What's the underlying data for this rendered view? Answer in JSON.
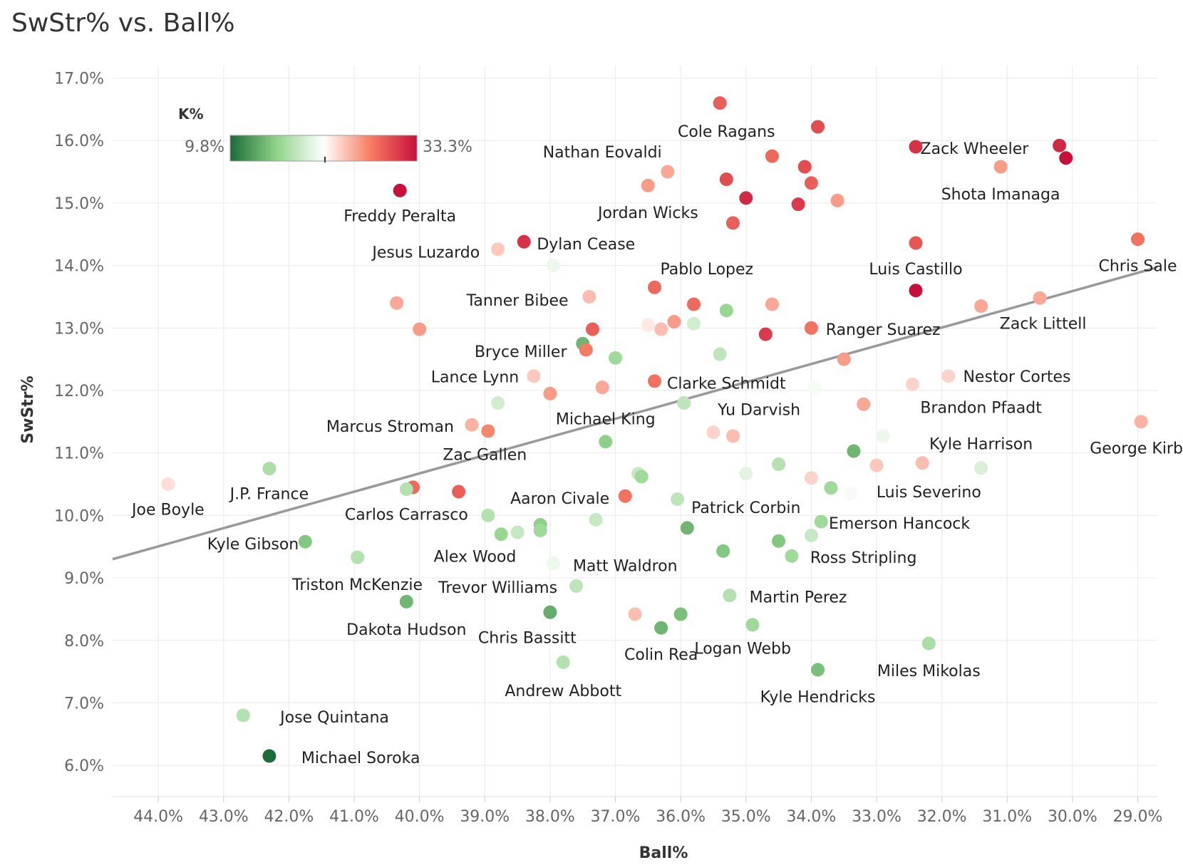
{
  "chart_data": {
    "type": "scatter",
    "title": "SwStr% vs. Ball%",
    "xlabel": "Ball%",
    "ylabel": "SwStr%",
    "x_reversed": true,
    "xlim": [
      28.7,
      44.7
    ],
    "ylim": [
      5.5,
      17.2
    ],
    "xticks": [
      44,
      43,
      42,
      41,
      40,
      39,
      38,
      37,
      36,
      35,
      34,
      33,
      32,
      31,
      30,
      29
    ],
    "yticks": [
      6,
      7,
      8,
      9,
      10,
      11,
      12,
      13,
      14,
      15,
      16,
      17
    ],
    "grid": true,
    "trendline": [
      [
        44.7,
        9.3
      ],
      [
        28.1,
        13.97
      ]
    ],
    "color_legend": {
      "title": "K%",
      "min_label": "9.8%",
      "max_label": "33.3%",
      "colors": [
        "#1e6b3a",
        "#90d48a",
        "#ffffff",
        "#f77d62",
        "#c8103a"
      ]
    },
    "points": [
      {
        "x": 35.4,
        "y": 16.6,
        "k": 29.0
      },
      {
        "x": 33.9,
        "y": 16.22,
        "k": 30.0
      },
      {
        "x": 32.4,
        "y": 15.9,
        "k": 31.5
      },
      {
        "x": 30.2,
        "y": 15.92,
        "k": 32.0
      },
      {
        "x": 30.1,
        "y": 15.72,
        "k": 33.3
      },
      {
        "x": 34.6,
        "y": 15.75,
        "k": 28.5
      },
      {
        "x": 34.1,
        "y": 15.58,
        "k": 30.0
      },
      {
        "x": 31.1,
        "y": 15.58,
        "k": 26.0
      },
      {
        "x": 36.2,
        "y": 15.5,
        "k": 25.5
      },
      {
        "x": 36.5,
        "y": 15.28,
        "k": 26.0
      },
      {
        "x": 35.3,
        "y": 15.38,
        "k": 30.0
      },
      {
        "x": 34.0,
        "y": 15.32,
        "k": 29.0
      },
      {
        "x": 35.0,
        "y": 15.08,
        "k": 32.0
      },
      {
        "x": 34.2,
        "y": 14.98,
        "k": 31.0
      },
      {
        "x": 33.6,
        "y": 15.04,
        "k": 26.0
      },
      {
        "x": 40.3,
        "y": 15.2,
        "k": 33.3
      },
      {
        "x": 35.2,
        "y": 14.68,
        "k": 29.0
      },
      {
        "x": 38.4,
        "y": 14.38,
        "k": 31.5
      },
      {
        "x": 38.8,
        "y": 14.26,
        "k": 24.0
      },
      {
        "x": 32.4,
        "y": 14.36,
        "k": 29.5
      },
      {
        "x": 29.0,
        "y": 14.42,
        "k": 28.0
      },
      {
        "x": 37.95,
        "y": 14.0,
        "k": 20.5
      },
      {
        "x": 36.4,
        "y": 13.65,
        "k": 28.5
      },
      {
        "x": 37.4,
        "y": 13.5,
        "k": 24.5
      },
      {
        "x": 32.4,
        "y": 13.6,
        "k": 33.3
      },
      {
        "x": 30.5,
        "y": 13.48,
        "k": 25.5
      },
      {
        "x": 40.35,
        "y": 13.4,
        "k": 25.5
      },
      {
        "x": 35.8,
        "y": 13.38,
        "k": 28.5
      },
      {
        "x": 34.6,
        "y": 13.38,
        "k": 25.5
      },
      {
        "x": 31.4,
        "y": 13.35,
        "k": 25.5
      },
      {
        "x": 35.3,
        "y": 13.28,
        "k": 16.0
      },
      {
        "x": 36.1,
        "y": 13.1,
        "k": 26.0
      },
      {
        "x": 35.8,
        "y": 13.07,
        "k": 19.0
      },
      {
        "x": 36.5,
        "y": 13.05,
        "k": 22.5
      },
      {
        "x": 36.3,
        "y": 12.98,
        "k": 24.5
      },
      {
        "x": 40.0,
        "y": 12.98,
        "k": 26.0
      },
      {
        "x": 37.35,
        "y": 12.98,
        "k": 29.0
      },
      {
        "x": 34.7,
        "y": 12.9,
        "k": 31.0
      },
      {
        "x": 34.0,
        "y": 13.0,
        "k": 28.0
      },
      {
        "x": 37.5,
        "y": 12.75,
        "k": 14.0
      },
      {
        "x": 37.45,
        "y": 12.65,
        "k": 27.5
      },
      {
        "x": 37.0,
        "y": 12.52,
        "k": 16.5
      },
      {
        "x": 35.4,
        "y": 12.58,
        "k": 18.0
      },
      {
        "x": 33.5,
        "y": 12.5,
        "k": 26.0
      },
      {
        "x": 38.25,
        "y": 12.23,
        "k": 24.0
      },
      {
        "x": 31.9,
        "y": 12.23,
        "k": 23.5
      },
      {
        "x": 36.4,
        "y": 12.15,
        "k": 28.0
      },
      {
        "x": 32.45,
        "y": 12.1,
        "k": 23.5
      },
      {
        "x": 37.2,
        "y": 12.05,
        "k": 25.5
      },
      {
        "x": 33.95,
        "y": 12.05,
        "k": 21.0
      },
      {
        "x": 38.0,
        "y": 11.95,
        "k": 26.0
      },
      {
        "x": 38.8,
        "y": 11.8,
        "k": 19.0
      },
      {
        "x": 35.95,
        "y": 11.8,
        "k": 18.0
      },
      {
        "x": 33.2,
        "y": 11.78,
        "k": 25.5
      },
      {
        "x": 39.2,
        "y": 11.45,
        "k": 25.0
      },
      {
        "x": 38.95,
        "y": 11.35,
        "k": 27.0
      },
      {
        "x": 35.5,
        "y": 11.33,
        "k": 23.5
      },
      {
        "x": 35.2,
        "y": 11.27,
        "k": 24.5
      },
      {
        "x": 28.95,
        "y": 11.5,
        "k": 25.0
      },
      {
        "x": 37.15,
        "y": 11.18,
        "k": 15.5
      },
      {
        "x": 32.9,
        "y": 11.27,
        "k": 20.5
      },
      {
        "x": 33.35,
        "y": 11.03,
        "k": 14.0
      },
      {
        "x": 42.3,
        "y": 10.75,
        "k": 17.0
      },
      {
        "x": 34.5,
        "y": 10.82,
        "k": 17.5
      },
      {
        "x": 33.0,
        "y": 10.8,
        "k": 24.0
      },
      {
        "x": 32.3,
        "y": 10.84,
        "k": 24.5
      },
      {
        "x": 31.4,
        "y": 10.76,
        "k": 19.5
      },
      {
        "x": 35.0,
        "y": 10.67,
        "k": 20.0
      },
      {
        "x": 36.65,
        "y": 10.67,
        "k": 18.5
      },
      {
        "x": 36.6,
        "y": 10.62,
        "k": 16.5
      },
      {
        "x": 34.0,
        "y": 10.6,
        "k": 23.5
      },
      {
        "x": 43.85,
        "y": 10.5,
        "k": 23.0
      },
      {
        "x": 40.1,
        "y": 10.45,
        "k": 28.5
      },
      {
        "x": 40.2,
        "y": 10.42,
        "k": 17.5
      },
      {
        "x": 39.4,
        "y": 10.38,
        "k": 29.0
      },
      {
        "x": 33.7,
        "y": 10.44,
        "k": 16.5
      },
      {
        "x": 33.4,
        "y": 10.35,
        "k": 21.0
      },
      {
        "x": 36.85,
        "y": 10.31,
        "k": 28.0
      },
      {
        "x": 36.05,
        "y": 10.26,
        "k": 18.0
      },
      {
        "x": 38.95,
        "y": 10.0,
        "k": 17.5
      },
      {
        "x": 37.3,
        "y": 9.93,
        "k": 18.5
      },
      {
        "x": 33.85,
        "y": 9.9,
        "k": 16.5
      },
      {
        "x": 38.15,
        "y": 9.85,
        "k": 15.5
      },
      {
        "x": 35.9,
        "y": 9.8,
        "k": 14.0
      },
      {
        "x": 38.15,
        "y": 9.76,
        "k": 16.5
      },
      {
        "x": 38.5,
        "y": 9.73,
        "k": 18.5
      },
      {
        "x": 38.75,
        "y": 9.7,
        "k": 16.0
      },
      {
        "x": 34.0,
        "y": 9.68,
        "k": 18.5
      },
      {
        "x": 41.75,
        "y": 9.58,
        "k": 15.0
      },
      {
        "x": 34.5,
        "y": 9.59,
        "k": 15.0
      },
      {
        "x": 35.35,
        "y": 9.43,
        "k": 15.0
      },
      {
        "x": 34.3,
        "y": 9.35,
        "k": 16.5
      },
      {
        "x": 40.95,
        "y": 9.33,
        "k": 17.5
      },
      {
        "x": 37.95,
        "y": 9.23,
        "k": 20.5
      },
      {
        "x": 37.6,
        "y": 8.87,
        "k": 18.0
      },
      {
        "x": 35.25,
        "y": 8.72,
        "k": 17.5
      },
      {
        "x": 40.2,
        "y": 8.62,
        "k": 14.0
      },
      {
        "x": 38.0,
        "y": 8.45,
        "k": 13.5
      },
      {
        "x": 36.0,
        "y": 8.42,
        "k": 14.5
      },
      {
        "x": 36.7,
        "y": 8.42,
        "k": 24.5
      },
      {
        "x": 34.9,
        "y": 8.25,
        "k": 16.5
      },
      {
        "x": 36.3,
        "y": 8.2,
        "k": 14.0
      },
      {
        "x": 32.2,
        "y": 7.95,
        "k": 17.0
      },
      {
        "x": 37.8,
        "y": 7.65,
        "k": 17.5
      },
      {
        "x": 33.9,
        "y": 7.53,
        "k": 14.5
      },
      {
        "x": 42.7,
        "y": 6.8,
        "k": 17.5
      },
      {
        "x": 42.3,
        "y": 6.15,
        "k": 9.8
      }
    ],
    "labels": [
      {
        "text": "Cole Ragans",
        "x": 35.3,
        "y": 16.15
      },
      {
        "text": "Zack Wheeler",
        "x": 31.5,
        "y": 15.88
      },
      {
        "text": "Nathan Eovaldi",
        "x": 37.2,
        "y": 15.82
      },
      {
        "text": "Shota Imanaga",
        "x": 31.1,
        "y": 15.15
      },
      {
        "text": "Jordan Wicks",
        "x": 36.5,
        "y": 14.85
      },
      {
        "text": "Freddy Peralta",
        "x": 40.3,
        "y": 14.8
      },
      {
        "text": "Dylan Cease",
        "x": 37.45,
        "y": 14.35
      },
      {
        "text": "Jesus Luzardo",
        "x": 39.9,
        "y": 14.22
      },
      {
        "text": "Chris Sale",
        "x": 29.0,
        "y": 14.0
      },
      {
        "text": "Luis Castillo",
        "x": 32.4,
        "y": 13.95
      },
      {
        "text": "Pablo Lopez",
        "x": 35.6,
        "y": 13.95
      },
      {
        "text": "Tanner Bibee",
        "x": 38.5,
        "y": 13.45
      },
      {
        "text": "Zack Littell",
        "x": 30.45,
        "y": 13.08
      },
      {
        "text": "Ranger Suarez",
        "x": 32.9,
        "y": 12.98
      },
      {
        "text": "Bryce Miller",
        "x": 38.45,
        "y": 12.63
      },
      {
        "text": "Lance Lynn",
        "x": 39.15,
        "y": 12.22
      },
      {
        "text": "Nestor Cortes",
        "x": 30.85,
        "y": 12.23
      },
      {
        "text": "Clarke Schmidt",
        "x": 35.3,
        "y": 12.12
      },
      {
        "text": "Brandon Pfaadt",
        "x": 31.4,
        "y": 11.73
      },
      {
        "text": "Yu Darvish",
        "x": 34.8,
        "y": 11.7
      },
      {
        "text": "Michael King",
        "x": 37.15,
        "y": 11.55
      },
      {
        "text": "Marcus Stroman",
        "x": 40.45,
        "y": 11.43
      },
      {
        "text": "Kyle Harrison",
        "x": 31.4,
        "y": 11.15
      },
      {
        "text": "George Kirby",
        "x": 28.95,
        "y": 11.08
      },
      {
        "text": "Zac Gallen",
        "x": 39.0,
        "y": 10.98
      },
      {
        "text": "J.P. France",
        "x": 42.3,
        "y": 10.35
      },
      {
        "text": "Joe Boyle",
        "x": 43.85,
        "y": 10.1
      },
      {
        "text": "Luis Severino",
        "x": 32.2,
        "y": 10.38
      },
      {
        "text": "Aaron Civale",
        "x": 37.85,
        "y": 10.28
      },
      {
        "text": "Patrick Corbin",
        "x": 35.0,
        "y": 10.13
      },
      {
        "text": "Carlos Carrasco",
        "x": 40.2,
        "y": 10.02
      },
      {
        "text": "Emerson Hancock",
        "x": 32.65,
        "y": 9.88
      },
      {
        "text": "Kyle Gibson",
        "x": 42.55,
        "y": 9.55
      },
      {
        "text": "Alex Wood",
        "x": 39.15,
        "y": 9.35
      },
      {
        "text": "Ross Stripling",
        "x": 33.2,
        "y": 9.33
      },
      {
        "text": "Matt Waldron",
        "x": 36.85,
        "y": 9.2
      },
      {
        "text": "Triston McKenzie",
        "x": 40.95,
        "y": 8.9
      },
      {
        "text": "Trevor Williams",
        "x": 38.8,
        "y": 8.85
      },
      {
        "text": "Martin Perez",
        "x": 34.2,
        "y": 8.7
      },
      {
        "text": "Dakota Hudson",
        "x": 40.2,
        "y": 8.18
      },
      {
        "text": "Chris Bassitt",
        "x": 38.35,
        "y": 8.05
      },
      {
        "text": "Logan Webb",
        "x": 35.05,
        "y": 7.88
      },
      {
        "text": "Colin Rea",
        "x": 36.3,
        "y": 7.78
      },
      {
        "text": "Miles Mikolas",
        "x": 32.2,
        "y": 7.52
      },
      {
        "text": "Kyle Hendricks",
        "x": 33.9,
        "y": 7.1
      },
      {
        "text": "Andrew Abbott",
        "x": 37.8,
        "y": 7.2
      },
      {
        "text": "Jose Quintana",
        "x": 41.3,
        "y": 6.78
      },
      {
        "text": "Michael Soroka",
        "x": 40.9,
        "y": 6.13
      }
    ]
  },
  "colors": {
    "grid": "#ececec",
    "axis_text": "#666666",
    "label_text": "#222222",
    "trend": "#999999"
  }
}
